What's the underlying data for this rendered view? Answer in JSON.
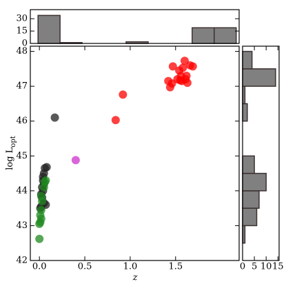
{
  "chart_data": [
    {
      "type": "histogram",
      "orientation": "vertical",
      "bins": [
        -0.015,
        0.2275,
        0.47,
        0.7125,
        0.955,
        1.1975,
        1.44,
        1.6825,
        1.925,
        2.1675
      ],
      "counts": [
        34,
        1,
        0,
        0,
        2,
        0,
        0,
        19,
        19
      ],
      "color": "#808080",
      "edgecolor": "#3d3030",
      "xlim": [
        -0.1,
        2.2
      ],
      "ylim": [
        0,
        41
      ],
      "yticks": [
        0,
        15,
        30
      ]
    },
    {
      "type": "scatter",
      "xlabel": "z",
      "ylabel": "log L",
      "ylabel_sub": "opt",
      "xlim": [
        -0.1,
        2.2
      ],
      "ylim": [
        42,
        48.15
      ],
      "xticks": [
        {
          "value": 0,
          "label": "0.0"
        },
        0.5,
        {
          "value": 1,
          "label": "1.0"
        },
        1.5
      ],
      "yticks": [
        42,
        43,
        44,
        45,
        46,
        47,
        48
      ],
      "series": [
        {
          "color": "#ff0000",
          "x": [
            0.84,
            0.92,
            1.42,
            1.44,
            1.46,
            1.47,
            1.52,
            1.54,
            1.56,
            1.57,
            1.58,
            1.6,
            1.61,
            1.62,
            1.63,
            1.66,
            1.69,
            1.55
          ],
          "y": [
            46.03,
            46.76,
            47.15,
            46.97,
            47.08,
            47.57,
            47.2,
            47.45,
            47.3,
            47.15,
            47.53,
            47.73,
            47.2,
            47.3,
            47.1,
            47.6,
            47.57,
            47.17
          ]
        },
        {
          "color": "#222222",
          "x": [
            0.17,
            0.08,
            0.06,
            0.05,
            0.04,
            0.05,
            0.03,
            0.04,
            0.02,
            0.03,
            0.05,
            0.07,
            0.02,
            0.01,
            0.04
          ],
          "y": [
            46.1,
            44.68,
            44.65,
            44.5,
            44.4,
            44.2,
            44.1,
            44.0,
            43.9,
            43.8,
            43.65,
            43.6,
            43.55,
            43.5,
            44.3
          ]
        },
        {
          "color": "#1f8a1f",
          "x": [
            0.07,
            0.06,
            0.05,
            0.02,
            0.03,
            0.02,
            0.01,
            0.02,
            0.01,
            0.0,
            0.0
          ],
          "y": [
            44.3,
            44.25,
            44.1,
            43.85,
            43.7,
            43.45,
            43.3,
            43.2,
            43.1,
            43.05,
            42.62
          ]
        },
        {
          "color": "#cc33cc",
          "x": [
            0.4
          ],
          "y": [
            44.88
          ]
        }
      ]
    },
    {
      "type": "histogram",
      "orientation": "horizontal",
      "bins": [
        42.5,
        43,
        43.5,
        44,
        44.5,
        45,
        45.5,
        46,
        46.5,
        47,
        47.5,
        48
      ],
      "counts": [
        1,
        6,
        7,
        10,
        5,
        0,
        0,
        2,
        1,
        14,
        4
      ],
      "color": "#808080",
      "edgecolor": "#3d3030",
      "ylim": [
        42,
        48.15
      ],
      "xlim": [
        0,
        15.5
      ],
      "xticks": [
        0,
        5,
        10,
        15
      ]
    }
  ]
}
